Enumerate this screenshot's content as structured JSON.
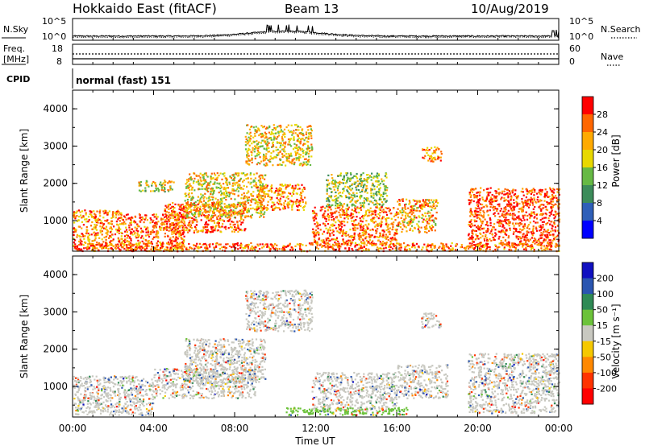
{
  "header": {
    "title": "Hokkaido East (fitACF)",
    "beam": "Beam 13",
    "date": "10/Aug/2019"
  },
  "noise_panel": {
    "left_label": "N.Sky",
    "right_label": "N.Search",
    "left_ticks": [
      "10^5",
      "10^0"
    ],
    "right_ticks": [
      "10^5",
      "10^0"
    ]
  },
  "freq_panel": {
    "left_label_line1": "Freq.",
    "left_label_line2": "[MHz]",
    "left_ticks": [
      "18",
      "8"
    ],
    "right_label": "Nave",
    "right_ticks": [
      "60",
      "0"
    ]
  },
  "cpid_panel": {
    "label": "CPID",
    "value": "normal (fast) 151"
  },
  "chart_data": [
    {
      "type": "heatmap",
      "name": "Power",
      "ylabel": "Slant Range [km]",
      "ylim": [
        180,
        4500
      ],
      "y_ticks": [
        "1000",
        "2000",
        "3000",
        "4000"
      ],
      "colorbar_label": "Power [dB]",
      "colorbar_ticks": [
        "4",
        "8",
        "12",
        "16",
        "20",
        "24",
        "28"
      ],
      "colorbar_colors": [
        "#0000ff",
        "#2f5fb8",
        "#3c8c5a",
        "#66b944",
        "#e8d800",
        "#ffaa00",
        "#ff6600",
        "#ff0000"
      ],
      "regions": [
        {
          "x": [
            0.0,
            2.5
          ],
          "y": [
            250,
            1300
          ],
          "value": 24
        },
        {
          "x": [
            2.5,
            5.5
          ],
          "y": [
            250,
            1200
          ],
          "value": 26
        },
        {
          "x": [
            4.5,
            8.5
          ],
          "y": [
            700,
            1500
          ],
          "value": 26
        },
        {
          "x": [
            3.2,
            5.0
          ],
          "y": [
            1800,
            2100
          ],
          "value": 18
        },
        {
          "x": [
            5.5,
            9.5
          ],
          "y": [
            1100,
            2300
          ],
          "value": 20
        },
        {
          "x": [
            9.0,
            11.5
          ],
          "y": [
            1300,
            2000
          ],
          "value": 24
        },
        {
          "x": [
            8.5,
            11.8
          ],
          "y": [
            2500,
            3600
          ],
          "value": 20
        },
        {
          "x": [
            11.8,
            16.0
          ],
          "y": [
            350,
            1400
          ],
          "value": 26
        },
        {
          "x": [
            12.5,
            15.5
          ],
          "y": [
            1400,
            2300
          ],
          "value": 16
        },
        {
          "x": [
            16.0,
            18.0
          ],
          "y": [
            700,
            1600
          ],
          "value": 22
        },
        {
          "x": [
            17.2,
            18.2
          ],
          "y": [
            2600,
            3000
          ],
          "value": 24
        },
        {
          "x": [
            19.5,
            24.0
          ],
          "y": [
            300,
            1900
          ],
          "value": 28
        },
        {
          "x": [
            0.0,
            24.0
          ],
          "y": [
            200,
            420
          ],
          "value": 26
        }
      ]
    },
    {
      "type": "heatmap",
      "name": "Velocity",
      "ylabel": "Slant Range [km]",
      "ylim": [
        180,
        4500
      ],
      "y_ticks": [
        "1000",
        "2000",
        "3000",
        "4000"
      ],
      "colorbar_label": "Velocity [m s⁻¹]",
      "colorbar_ticks": [
        "200",
        "100",
        "50",
        "15",
        "-15",
        "-50",
        "-100",
        "-200"
      ],
      "colorbar_colors": [
        "#1010c0",
        "#2a55b0",
        "#2f8a55",
        "#6cc23a",
        "#c8c8c0",
        "#f5c800",
        "#ff8800",
        "#ff3300",
        "#ff0000"
      ],
      "regions": [
        {
          "x": [
            0.0,
            4.0
          ],
          "y": [
            250,
            1300
          ],
          "value": 0
        },
        {
          "x": [
            4.0,
            9.0
          ],
          "y": [
            700,
            1500
          ],
          "value": 0
        },
        {
          "x": [
            5.5,
            9.5
          ],
          "y": [
            1100,
            2300
          ],
          "value": 0
        },
        {
          "x": [
            8.5,
            11.8
          ],
          "y": [
            2500,
            3600
          ],
          "value": 0
        },
        {
          "x": [
            11.8,
            16.0
          ],
          "y": [
            350,
            1400
          ],
          "value": 0
        },
        {
          "x": [
            16.0,
            18.5
          ],
          "y": [
            700,
            1600
          ],
          "value": 0
        },
        {
          "x": [
            17.2,
            18.2
          ],
          "y": [
            2600,
            3000
          ],
          "value": 0
        },
        {
          "x": [
            19.5,
            24.0
          ],
          "y": [
            300,
            1900
          ],
          "value": 0
        },
        {
          "x": [
            10.5,
            16.5
          ],
          "y": [
            250,
            450
          ],
          "value": 30
        }
      ]
    }
  ],
  "x_axis": {
    "label": "Time UT",
    "ticks": [
      "00:00",
      "04:00",
      "08:00",
      "12:00",
      "16:00",
      "20:00",
      "00:00"
    ],
    "range_hours": [
      0,
      24
    ]
  }
}
